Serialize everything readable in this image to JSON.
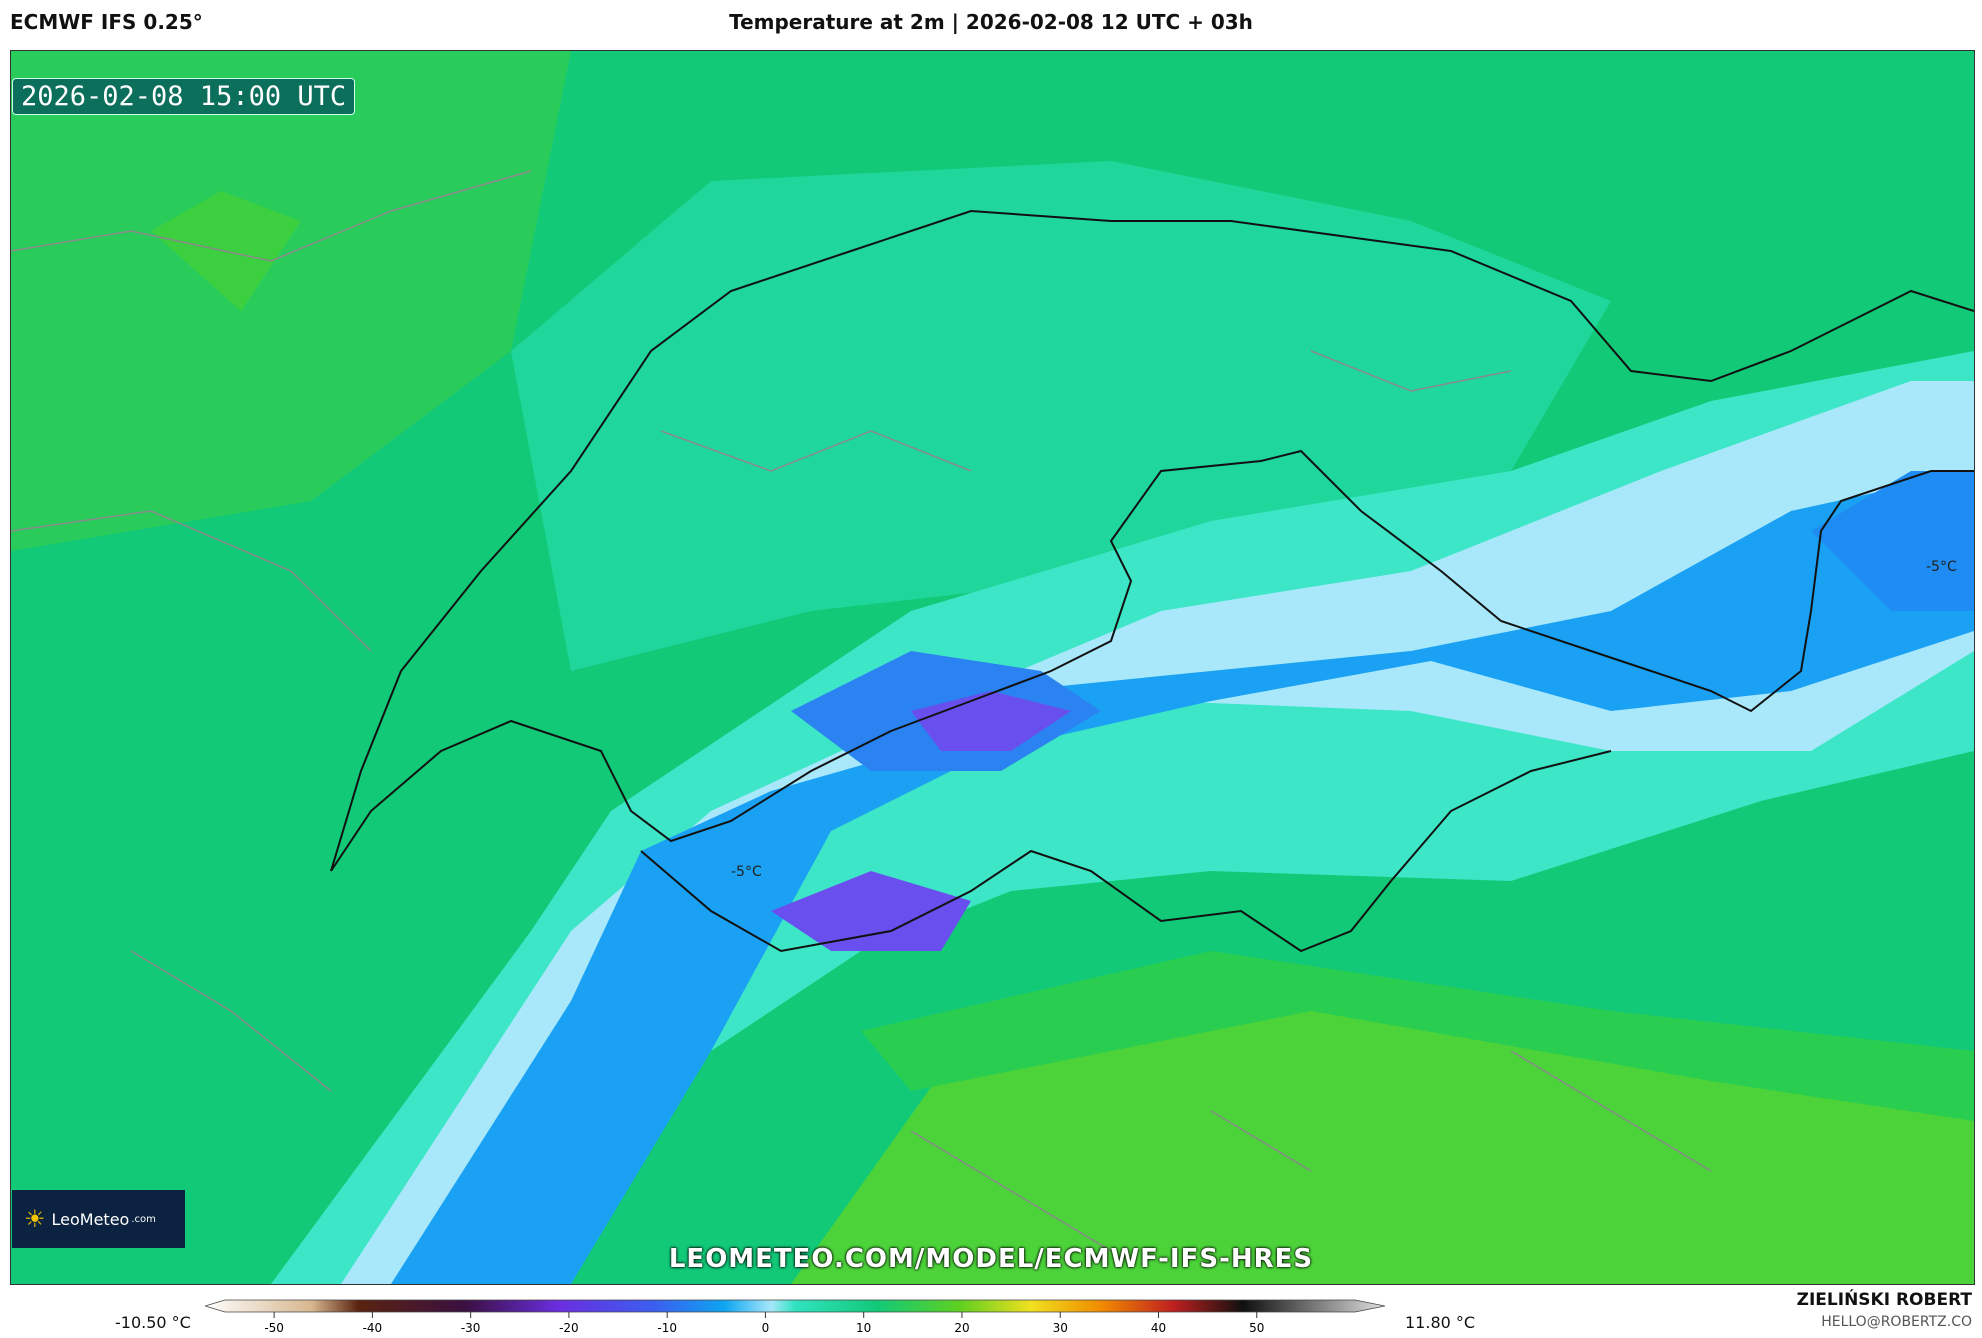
{
  "header": {
    "model": "ECMWF IFS 0.25°",
    "title": "Temperature at 2m | 2026-02-08 12 UTC + 03h"
  },
  "map": {
    "valid_time": "2026-02-08 15:00 UTC",
    "contour_labels": [
      "-5°C",
      "-5°C"
    ],
    "watermark": "LEOMETEO.COM/MODEL/ECMWF-IFS-HRES",
    "logo_text": "LeoMeteo",
    "logo_suffix": ".com",
    "logo_icon": "sun-icon"
  },
  "colorbar": {
    "min_value": "-10.50 °C",
    "max_value": "11.80 °C",
    "ticks": [
      "-50",
      "-40",
      "-30",
      "-20",
      "-10",
      "0",
      "10",
      "20",
      "30",
      "40",
      "50"
    ],
    "range": [
      -55,
      60
    ]
  },
  "author": {
    "name": "ZIELIŃSKI ROBERT",
    "email": "HELLO@ROBERTZ.CO"
  },
  "colors": {
    "warm_green": "#3fc84a",
    "mid_green": "#14cf83",
    "cyan": "#33e3c3",
    "light_blue": "#a6e7fb",
    "blue": "#1aa0f5",
    "violet": "#5c52f0"
  }
}
